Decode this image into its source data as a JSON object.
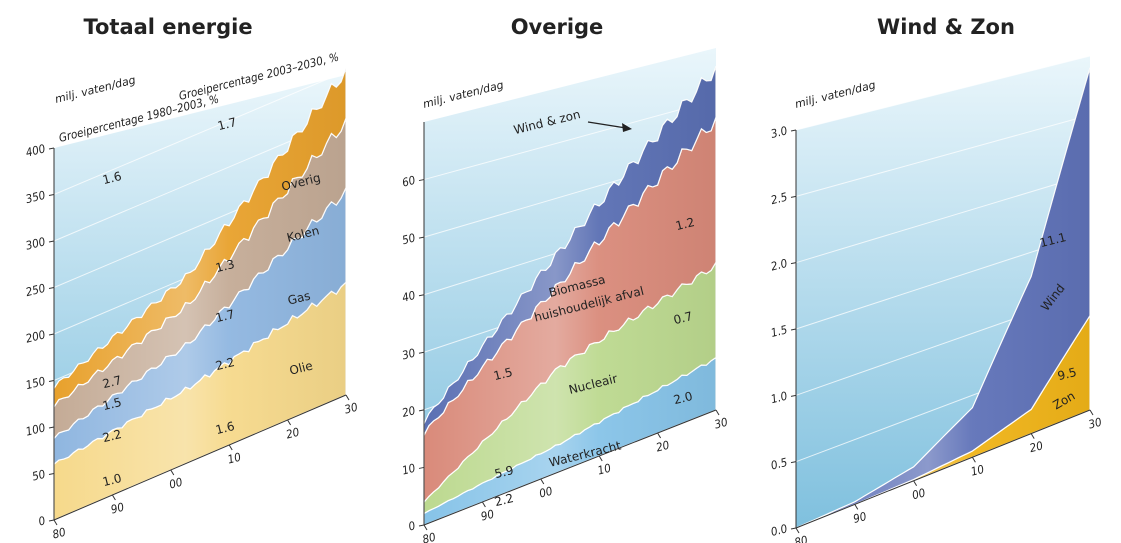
{
  "colors": {
    "bg_top": "#d3ecf7",
    "bg_bottom": "#7fc0de",
    "olie": "#f6d98b",
    "gas": "#8fb6e0",
    "kolen": "#c4ab96",
    "overig": "#e8a12c",
    "waterkracht": "#86c3e8",
    "nucleair": "#bcd98f",
    "biomassa": "#d98a7a",
    "wind_zon": "#5a6fb3",
    "wind": "#5f72b8",
    "zon": "#f0b418",
    "axis": "#333333",
    "grid": "#ffffff"
  },
  "chart_data": [
    {
      "type": "area",
      "stacked": true,
      "title": "Totaal energie",
      "ylabel": "milj. vaten/dag",
      "ylim": [
        0,
        400
      ],
      "yticks": [
        "0",
        "50",
        "100",
        "150",
        "200",
        "250",
        "300",
        "350",
        "400"
      ],
      "xticks": [
        "80",
        "90",
        "00",
        "10",
        "20",
        "30"
      ],
      "x": [
        1980,
        2003,
        2030
      ],
      "series": [
        {
          "name": "Olie",
          "values": [
            60,
            80,
            120
          ]
        },
        {
          "name": "Gas",
          "values": [
            28,
            48,
            100
          ]
        },
        {
          "name": "Kolen",
          "values": [
            35,
            42,
            75
          ]
        },
        {
          "name": "Overig",
          "values": [
            20,
            32,
            55
          ]
        }
      ],
      "growth_header_1980_2003": "Groeipercentage 1980–2003, %",
      "growth_header_2003_2030": "Groeipercentage 2003–2030, %",
      "growth_1980_2003": {
        "Olie": "1.0",
        "Gas": "2.2",
        "Kolen": "1.5",
        "Overig": "2.7",
        "Total": "1.6"
      },
      "growth_2003_2030": {
        "Olie": "1.6",
        "Gas": "2.2",
        "Kolen": "1.7",
        "Overig": "1.3",
        "Total": "1.7"
      }
    },
    {
      "type": "area",
      "stacked": true,
      "title": "Overige",
      "ylabel": "milj. vaten/dag",
      "ylim": [
        0,
        70
      ],
      "yticks": [
        "0",
        "10",
        "20",
        "30",
        "40",
        "50",
        "60"
      ],
      "xticks": [
        "80",
        "90",
        "00",
        "10",
        "20",
        "30"
      ],
      "x": [
        1980,
        2003,
        2030
      ],
      "series": [
        {
          "name": "Waterkracht",
          "values": [
            2,
            5,
            10
          ]
        },
        {
          "name": "Nucleair",
          "values": [
            2,
            14,
            18
          ]
        },
        {
          "name": "Biomassa huishoudelijk afval",
          "values": [
            12,
            15,
            28
          ]
        },
        {
          "name": "Wind & zon",
          "values": [
            2,
            6,
            10
          ]
        }
      ],
      "annotation": "Wind & zon",
      "growth_1980_2003": {
        "Waterkracht": "2.2",
        "Nucleair": "5.9",
        "Total": "1.5"
      },
      "growth_2003_2030": {
        "Waterkracht": "2.0",
        "Nucleair": "0.7",
        "Biomassa huishoudelijk afval": "1.2"
      }
    },
    {
      "type": "area",
      "stacked": true,
      "title": "Wind & Zon",
      "ylabel": "milj. vaten/dag",
      "ylim": [
        0,
        3.0
      ],
      "yticks": [
        "0.0",
        "0.5",
        "1.0",
        "1.5",
        "2.0",
        "2.5",
        "3.0"
      ],
      "xticks": [
        "80",
        "90",
        "00",
        "10",
        "20",
        "30"
      ],
      "x": [
        1980,
        1990,
        2000,
        2010,
        2020,
        2030
      ],
      "series": [
        {
          "name": "Zon",
          "values": [
            0,
            0,
            0.01,
            0.05,
            0.2,
            0.8
          ]
        },
        {
          "name": "Wind",
          "values": [
            0,
            0.02,
            0.1,
            0.35,
            1.1,
            2.1
          ]
        }
      ],
      "growth_2003_2030": {
        "Wind": "11.1",
        "Zon": "9.5"
      }
    }
  ]
}
